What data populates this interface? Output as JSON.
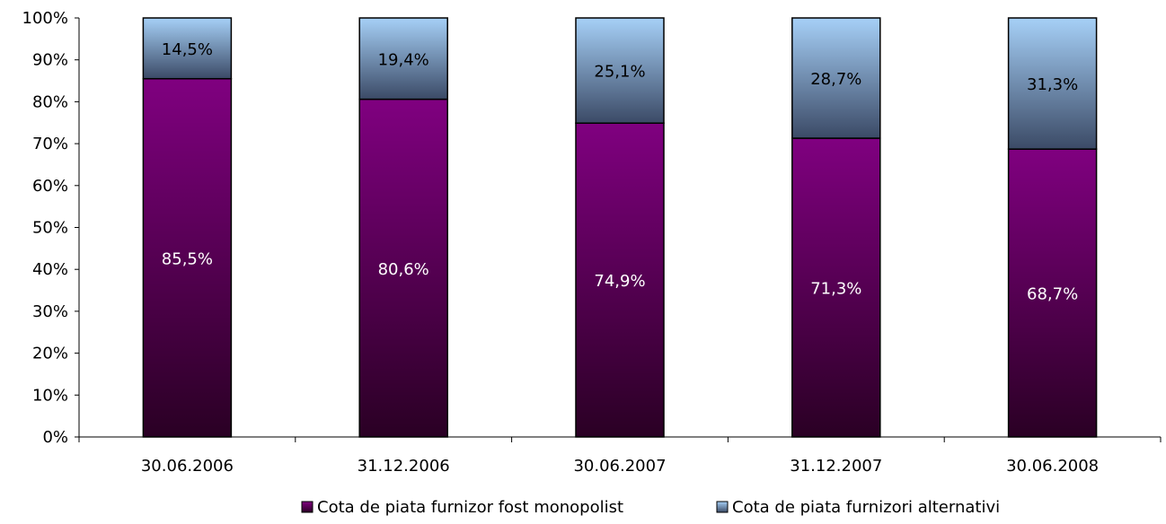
{
  "chart_data": {
    "type": "bar",
    "stacked": true,
    "percent_stacked": true,
    "categories": [
      "30.06.2006",
      "31.12.2006",
      "30.06.2007",
      "31.12.2007",
      "30.06.2008"
    ],
    "series": [
      {
        "name": "Cota de piata furnizor fost monopolist",
        "values": [
          85.5,
          80.6,
          74.9,
          71.3,
          68.7
        ],
        "labels": [
          "85,5%",
          "80,6%",
          "74,9%",
          "71,3%",
          "68,7%"
        ],
        "color_top": "#800080",
        "color_bottom": "#2a0024",
        "label_color": "#ffffff"
      },
      {
        "name": "Cota de piata furnizori alternativi",
        "values": [
          14.5,
          19.4,
          25.1,
          28.7,
          31.3
        ],
        "labels": [
          "14,5%",
          "19,4%",
          "25,1%",
          "28,7%",
          "31,3%"
        ],
        "color_top": "#a6d0f7",
        "color_bottom": "#3b4a66",
        "label_color": "#000000"
      }
    ],
    "ylim": [
      0,
      100
    ],
    "yticks": [
      0,
      10,
      20,
      30,
      40,
      50,
      60,
      70,
      80,
      90,
      100
    ],
    "ytick_labels": [
      "0%",
      "10%",
      "20%",
      "30%",
      "40%",
      "50%",
      "60%",
      "70%",
      "80%",
      "90%",
      "100%"
    ],
    "grid": false,
    "legend_position": "bottom",
    "title": "",
    "xlabel": "",
    "ylabel": ""
  }
}
